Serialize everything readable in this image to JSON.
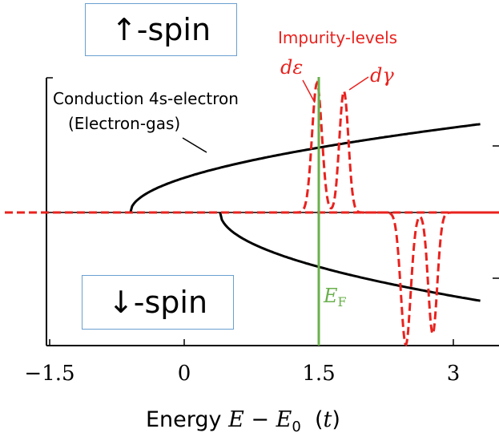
{
  "up_spin_label": "↑-spin",
  "down_spin_label": "↓-spin",
  "impurity_label": "Impurity-levels",
  "d_eps_label": "dε",
  "d_gamma_label": "dγ",
  "conduction_label_1": "Conduction 4s-electron",
  "conduction_label_2": "(Electron-gas)",
  "fermi_label": "E",
  "fermi_sub": "F",
  "xaxis": {
    "prefix": "Energy ",
    "E": "E",
    "minus": " − ",
    "E0": "E",
    "E0_sub": "0",
    "unit_open": "  (",
    "unit": "t",
    "unit_close": ")"
  },
  "colors": {
    "impurity": "#e8221e",
    "fermi": "#6ab04c",
    "curve": "#000000",
    "box_border": "#6aa0d0"
  },
  "chart_data": {
    "type": "line",
    "xlim": [
      -1.5,
      3.3
    ],
    "ylim": [
      -1.0,
      1.0
    ],
    "xticks": [
      -1.5,
      0,
      1.5,
      3
    ],
    "xtick_labels": [
      "−1.5",
      "0",
      "1.5",
      "3"
    ],
    "fermi_energy": 1.5,
    "series": [
      {
        "name": "Conduction 4s-electron (Electron-gas)",
        "spin": "up",
        "band_bottom": -0.6,
        "amplitude": 0.65
      },
      {
        "spin": "down",
        "band_bottom": 0.4,
        "amplitude": 0.65
      },
      {
        "name": "Impurity-levels",
        "spin": "up",
        "peaks": [
          {
            "label": "dε",
            "center": 1.48,
            "height": 0.95,
            "width": 0.055
          },
          {
            "label": "dγ",
            "center": 1.78,
            "height": 0.89,
            "width": 0.05
          }
        ]
      },
      {
        "spin": "down",
        "peaks": [
          {
            "center": 2.47,
            "height": 0.97,
            "width": 0.055
          },
          {
            "center": 2.77,
            "height": 0.89,
            "width": 0.05
          }
        ]
      }
    ]
  }
}
